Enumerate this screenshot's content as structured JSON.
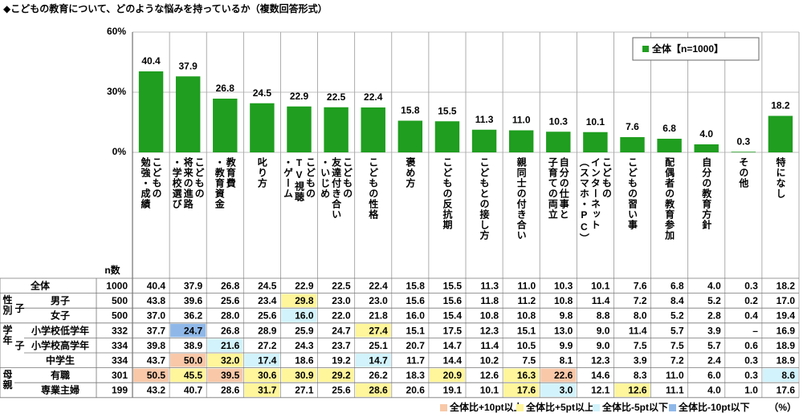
{
  "chart_data": {
    "type": "bar",
    "title": "◆こどもの教育について、どのような悩みを持っているか（複数回答形式）",
    "legend": "全体【n=1000】",
    "color": "#1f9e1f",
    "categories": [
      [
        "こどもの",
        "勉強・成績"
      ],
      [
        "こどもの",
        "将来の進路",
        "・学校選び"
      ],
      [
        "教育費",
        "・教育資金"
      ],
      [
        "叱り方"
      ],
      [
        "こどもの",
        "TV視聴",
        "・ゲーム"
      ],
      [
        "こどもの",
        "友達付き合い",
        "・いじめ"
      ],
      [
        "こどもの性格"
      ],
      [
        "褒め方"
      ],
      [
        "こどもの反抗期"
      ],
      [
        "こどもとの接し方"
      ],
      [
        "親同士の付き合い"
      ],
      [
        "自分の仕事と",
        "子育ての両立"
      ],
      [
        "こどもの",
        "インターネット",
        "（スマホ・PC）"
      ],
      [
        "こどもの習い事"
      ],
      [
        "配偶者の教育参加"
      ],
      [
        "自分の教育方針"
      ],
      [
        "その他"
      ],
      [
        "特になし"
      ]
    ],
    "values": [
      40.4,
      37.9,
      26.8,
      24.5,
      22.9,
      22.5,
      22.4,
      15.8,
      15.5,
      11.3,
      11.0,
      10.3,
      10.1,
      7.6,
      6.8,
      4.0,
      0.3,
      18.2
    ],
    "value_labels": [
      "40.4",
      "37.9",
      "26.8",
      "24.5",
      "22.9",
      "22.5",
      "22.4",
      "15.8",
      "15.5",
      "11.3",
      "11.0",
      "10.3",
      "10.1",
      "7.6",
      "6.8",
      "4.0",
      "0.3",
      "18.2"
    ],
    "ylim": [
      0,
      60
    ],
    "yticks": [
      {
        "value": 0,
        "label": "0%"
      },
      {
        "value": 30,
        "label": "30%"
      },
      {
        "value": 60,
        "label": "60%"
      }
    ]
  },
  "table": {
    "n_header": "n数",
    "unit": "（%）",
    "keys": [
      {
        "label": "全体比+10pt以上",
        "color": "#f8c8a8"
      },
      {
        "label": "全体比+5pt以上",
        "color": "#fff59a"
      },
      {
        "label": "全体比-5pt以下",
        "color": "#d2f3fb"
      },
      {
        "label": "全体比-10pt以下",
        "color": "#8fb8e8"
      }
    ],
    "total": {
      "label": "全体",
      "n": 1000,
      "cells": [
        "40.4",
        "37.9",
        "26.8",
        "24.5",
        "22.9",
        "22.5",
        "22.4",
        "15.8",
        "15.5",
        "11.3",
        "11.0",
        "10.3",
        "10.1",
        "7.6",
        "6.8",
        "4.0",
        "0.3",
        "18.2"
      ],
      "highlight": []
    },
    "groups": [
      {
        "label": "性別",
        "sub": "子",
        "rows": [
          {
            "label": "男子",
            "n": 500,
            "cells": [
              "43.8",
              "39.6",
              "25.6",
              "23.4",
              "29.8",
              "23.0",
              "23.0",
              "15.6",
              "15.6",
              "11.8",
              "11.2",
              "10.8",
              "11.4",
              "7.2",
              "8.4",
              "5.2",
              "0.2",
              "17.0"
            ],
            "highlight": [
              {
                "col": 4,
                "key": 1
              }
            ]
          },
          {
            "label": "女子",
            "n": 500,
            "cells": [
              "37.0",
              "36.2",
              "28.0",
              "25.6",
              "16.0",
              "22.0",
              "21.8",
              "16.0",
              "15.4",
              "10.8",
              "10.8",
              "9.8",
              "8.8",
              "8.0",
              "5.2",
              "2.8",
              "0.4",
              "19.4"
            ],
            "highlight": [
              {
                "col": 4,
                "key": 2
              }
            ]
          }
        ]
      },
      {
        "label": "学年",
        "sub": "子",
        "rows": [
          {
            "label": "小学校低学年",
            "n": 332,
            "cells": [
              "37.7",
              "24.7",
              "26.8",
              "28.9",
              "25.9",
              "24.7",
              "27.4",
              "15.1",
              "17.5",
              "12.3",
              "15.1",
              "13.0",
              "9.0",
              "11.4",
              "5.7",
              "3.9",
              "–",
              "16.9"
            ],
            "highlight": [
              {
                "col": 1,
                "key": 3
              },
              {
                "col": 6,
                "key": 1
              }
            ]
          },
          {
            "label": "小学校高学年",
            "n": 334,
            "cells": [
              "39.8",
              "38.9",
              "21.6",
              "27.2",
              "24.3",
              "23.7",
              "25.1",
              "20.7",
              "14.7",
              "11.4",
              "10.5",
              "9.9",
              "9.0",
              "7.5",
              "7.5",
              "5.7",
              "0.6",
              "18.9"
            ],
            "highlight": [
              {
                "col": 2,
                "key": 2
              }
            ]
          },
          {
            "label": "中学生",
            "n": 334,
            "cells": [
              "43.7",
              "50.0",
              "32.0",
              "17.4",
              "18.6",
              "19.2",
              "14.7",
              "11.7",
              "14.4",
              "10.2",
              "7.5",
              "8.1",
              "12.3",
              "3.9",
              "7.2",
              "2.4",
              "0.3",
              "18.9"
            ],
            "highlight": [
              {
                "col": 1,
                "key": 0
              },
              {
                "col": 2,
                "key": 1
              },
              {
                "col": 3,
                "key": 2
              },
              {
                "col": 6,
                "key": 2
              }
            ]
          }
        ]
      },
      {
        "label": "母親",
        "rows": [
          {
            "label": "有職",
            "n": 301,
            "cells": [
              "50.5",
              "45.5",
              "39.5",
              "30.6",
              "30.9",
              "29.2",
              "26.2",
              "18.3",
              "20.9",
              "12.6",
              "16.3",
              "22.6",
              "14.6",
              "8.3",
              "11.0",
              "6.0",
              "0.3",
              "8.6"
            ],
            "highlight": [
              {
                "col": 0,
                "key": 0
              },
              {
                "col": 1,
                "key": 1
              },
              {
                "col": 2,
                "key": 0
              },
              {
                "col": 3,
                "key": 1
              },
              {
                "col": 4,
                "key": 1
              },
              {
                "col": 5,
                "key": 1
              },
              {
                "col": 8,
                "key": 1
              },
              {
                "col": 10,
                "key": 1
              },
              {
                "col": 11,
                "key": 0
              },
              {
                "col": 17,
                "key": 2
              }
            ]
          },
          {
            "label": "専業主婦",
            "n": 199,
            "cells": [
              "43.2",
              "40.7",
              "28.6",
              "31.7",
              "27.1",
              "25.6",
              "28.6",
              "20.6",
              "19.1",
              "10.1",
              "17.6",
              "3.0",
              "12.1",
              "12.6",
              "11.1",
              "4.0",
              "1.0",
              "17.6"
            ],
            "highlight": [
              {
                "col": 3,
                "key": 1
              },
              {
                "col": 6,
                "key": 1
              },
              {
                "col": 10,
                "key": 1
              },
              {
                "col": 11,
                "key": 2
              },
              {
                "col": 13,
                "key": 1
              }
            ]
          }
        ]
      }
    ]
  }
}
